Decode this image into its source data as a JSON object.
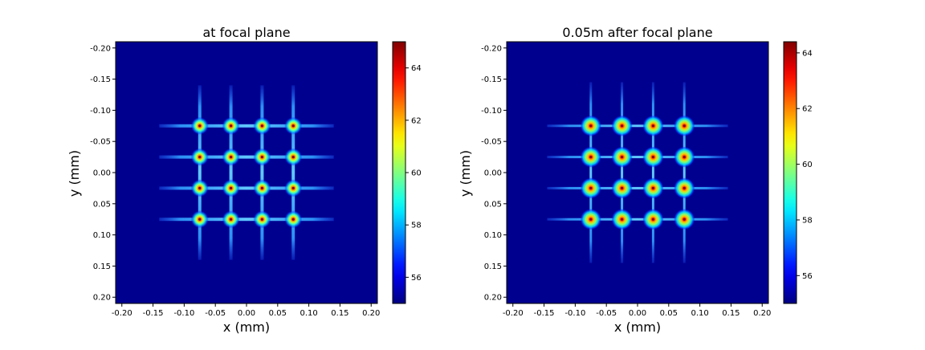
{
  "chart_data": [
    {
      "type": "heatmap",
      "title": "at focal plane",
      "xlabel": "x (mm)",
      "ylabel": "y (mm)",
      "xlim": [
        -0.21,
        0.21
      ],
      "ylim": [
        0.21,
        -0.21
      ],
      "y_inverted": true,
      "x_ticks": [
        "-0.20",
        "-0.15",
        "-0.10",
        "-0.05",
        "0.00",
        "0.05",
        "0.10",
        "0.15",
        "0.20"
      ],
      "y_ticks": [
        "-0.20",
        "-0.15",
        "-0.10",
        "-0.05",
        "0.00",
        "0.05",
        "0.10",
        "0.15",
        "0.20"
      ],
      "colormap": "jet",
      "background_color": "#00008f",
      "colorbar": {
        "min": 55,
        "max": 65,
        "ticks": [
          56,
          58,
          60,
          62,
          64
        ]
      },
      "spot_grid": {
        "x_centers_mm": [
          -0.075,
          -0.025,
          0.025,
          0.075
        ],
        "y_centers_mm": [
          -0.075,
          -0.025,
          0.025,
          0.075
        ],
        "peak_value": 65,
        "horizontal_line_extent_mm": [
          -0.14,
          0.14
        ],
        "vertical_line_extent_mm": [
          -0.14,
          0.14
        ],
        "spot_size": "small"
      }
    },
    {
      "type": "heatmap",
      "title": "0.05m after focal plane",
      "xlabel": "x (mm)",
      "ylabel": "y (mm)",
      "xlim": [
        -0.21,
        0.21
      ],
      "ylim": [
        0.21,
        -0.21
      ],
      "y_inverted": true,
      "x_ticks": [
        "-0.20",
        "-0.15",
        "-0.10",
        "-0.05",
        "0.00",
        "0.05",
        "0.10",
        "0.15",
        "0.20"
      ],
      "y_ticks": [
        "-0.20",
        "-0.15",
        "-0.10",
        "-0.05",
        "0.00",
        "0.05",
        "0.10",
        "0.15",
        "0.20"
      ],
      "colormap": "jet",
      "background_color": "#00008f",
      "colorbar": {
        "min": 55,
        "max": 64.4,
        "ticks": [
          56,
          58,
          60,
          62,
          64
        ]
      },
      "spot_grid": {
        "x_centers_mm": [
          -0.075,
          -0.025,
          0.025,
          0.075
        ],
        "y_centers_mm": [
          -0.075,
          -0.025,
          0.025,
          0.075
        ],
        "peak_value": 64.4,
        "horizontal_line_extent_mm": [
          -0.145,
          0.145
        ],
        "vertical_line_extent_mm": [
          -0.145,
          0.145
        ],
        "spot_size": "large"
      }
    }
  ]
}
